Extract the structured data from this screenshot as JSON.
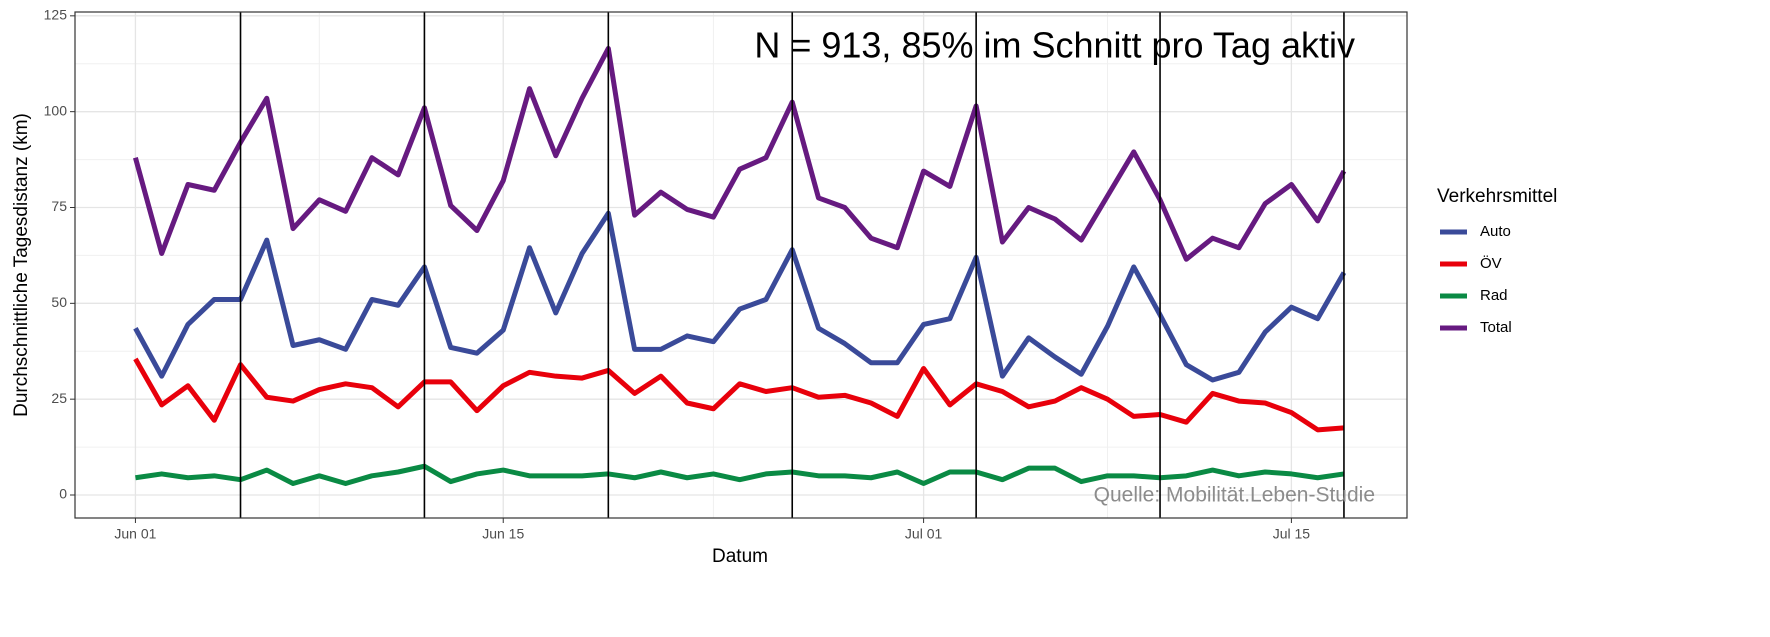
{
  "chart_data": {
    "type": "line",
    "annotation": "N = 913, 85% im Schnitt pro Tag aktiv",
    "source": "Quelle: Mobilität.Leben-Studie",
    "x_label": "Datum",
    "y_label": "Durchschnittliche Tagesdistanz (km)",
    "legend_title": "Verkehrsmittel",
    "legend": "right",
    "grid": true,
    "x": [
      0,
      1,
      2,
      3,
      4,
      5,
      6,
      7,
      8,
      9,
      10,
      11,
      12,
      13,
      14,
      15,
      16,
      17,
      18,
      19,
      20,
      21,
      22,
      23,
      24,
      25,
      26,
      27,
      28,
      29,
      30,
      31,
      32,
      33,
      34,
      35,
      36,
      37,
      38,
      39,
      40,
      41,
      42,
      43,
      44,
      45,
      46
    ],
    "xlim": [
      -2.3,
      48.4
    ],
    "xticks": [
      {
        "value": 0,
        "label": "Jun 01"
      },
      {
        "value": 14,
        "label": "Jun 15"
      },
      {
        "value": 30,
        "label": "Jul 01"
      },
      {
        "value": 44,
        "label": "Jul 15"
      }
    ],
    "vlines": [
      4,
      11,
      18,
      25,
      32,
      39,
      46
    ],
    "ylim": [
      -6,
      126
    ],
    "yticks": [
      0,
      25,
      50,
      75,
      100,
      125
    ],
    "series": [
      {
        "name": "Auto",
        "color": "#3a4a99",
        "values": [
          43.5,
          31,
          44.5,
          51,
          51,
          66.5,
          39,
          40.5,
          38,
          51,
          49.5,
          59.5,
          38.5,
          37,
          43,
          64.5,
          47.5,
          63,
          73.5,
          38,
          38,
          41.5,
          40,
          48.5,
          51,
          64,
          43.5,
          39.5,
          34.5,
          34.5,
          44.5,
          46,
          62,
          31,
          41,
          36,
          31.5,
          44,
          59.5,
          47,
          34,
          30,
          32,
          42.5,
          49,
          46,
          58
        ]
      },
      {
        "name": "ÖV",
        "color": "#e8000b",
        "values": [
          35.5,
          23.5,
          28.5,
          19.5,
          34,
          25.5,
          24.5,
          27.5,
          29,
          28,
          23,
          29.5,
          29.5,
          22,
          28.5,
          32,
          31,
          30.5,
          32.5,
          26.5,
          31,
          24,
          22.5,
          29,
          27,
          28,
          25.5,
          26,
          24,
          20.5,
          33,
          23.5,
          29,
          27,
          23,
          24.5,
          28,
          25,
          20.5,
          21,
          19,
          26.5,
          24.5,
          24,
          21.5,
          17,
          17.5
        ]
      },
      {
        "name": "Rad",
        "color": "#0a8a44",
        "values": [
          4.5,
          5.5,
          4.5,
          5,
          4,
          6.5,
          3,
          5,
          3,
          5,
          6,
          7.5,
          3.5,
          5.5,
          6.5,
          5,
          5,
          5,
          5.5,
          4.5,
          6,
          4.5,
          5.5,
          4,
          5.5,
          6,
          5,
          5,
          4.5,
          6,
          3,
          6,
          6,
          4,
          7,
          7,
          3.5,
          5,
          5,
          4.5,
          5,
          6.5,
          5,
          6,
          5.5,
          4.5,
          5.5
        ]
      },
      {
        "name": "Total",
        "color": "#661a80",
        "values": [
          88,
          63,
          81,
          79.5,
          92,
          103.5,
          69.5,
          77,
          74,
          88,
          83.5,
          101,
          75.5,
          69,
          82,
          106,
          88.5,
          103.5,
          116.5,
          73,
          79,
          74.5,
          72.5,
          85,
          88,
          102.5,
          77.5,
          75,
          67,
          64.5,
          84.5,
          80.5,
          101.5,
          66,
          75,
          72,
          66.5,
          78,
          89.5,
          77,
          61.5,
          67,
          64.5,
          76,
          81,
          71.5,
          84.5
        ]
      }
    ]
  }
}
